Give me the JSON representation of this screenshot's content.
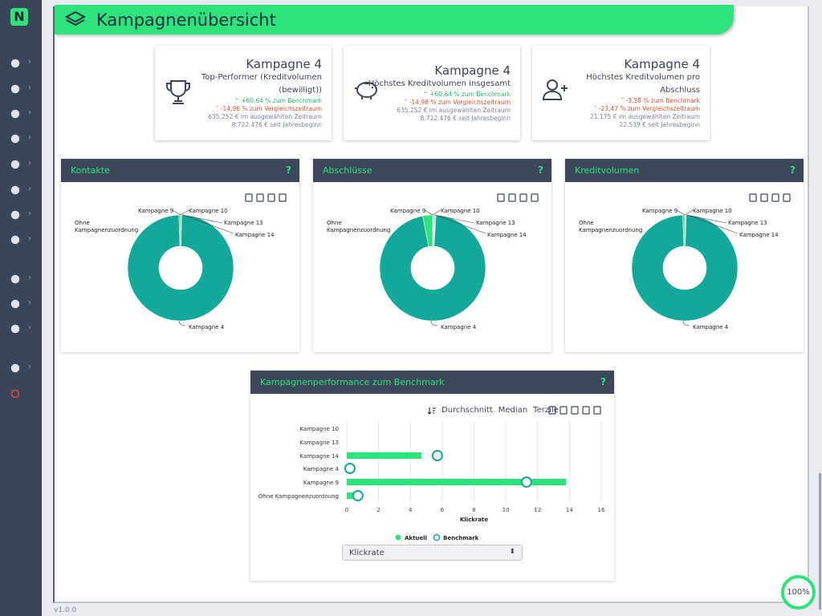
{
  "app": {
    "logo_letter": "N",
    "version": "v1.0.0",
    "zoom": "100%",
    "accent": "#2ee37b",
    "sidebar_bg": "#3b4559"
  },
  "sidebar": {
    "items": [
      {
        "icon": "filter-icon"
      },
      {
        "icon": "check-icon"
      },
      {
        "icon": "calculator-icon"
      },
      {
        "icon": "hand-coins-icon"
      },
      {
        "icon": "lightbulb-icon"
      },
      {
        "icon": "target-icon"
      },
      {
        "icon": "id-card-icon"
      },
      {
        "icon": "eye-icon"
      },
      {
        "icon": "tools-icon"
      },
      {
        "icon": "lock-icon"
      },
      {
        "icon": "play-icon"
      },
      {
        "icon": "user-icon"
      },
      {
        "icon": "power-icon"
      }
    ]
  },
  "page": {
    "title": "Kampagnenübersicht"
  },
  "kpis": [
    {
      "icon": "trophy-icon",
      "name": "Kampagne 4",
      "desc1": "Top-Performer (Kreditvolumen",
      "desc2": "(bewilligt))",
      "up": "^ +60,64 % zum Benchmark",
      "down": "˅ -14,96 % zum Vergleichszeitraum",
      "period": "635.252 € im ausgewählten Zeitraum",
      "ytd": "8.722.476 € seit Jahresbeginn"
    },
    {
      "icon": "piggy-bank-icon",
      "name": "Kampagne 4",
      "desc1": "Höchstes Kreditvolumen insgesamt",
      "desc2": "",
      "up": "^ +60,64 % zum Benchmark",
      "down": "˅ -14,96 % zum Vergleichszeitraum",
      "period": "635.252 € im ausgewählten Zeitraum",
      "ytd": "8.722.476 € seit Jahresbeginn"
    },
    {
      "icon": "user-plus-icon",
      "name": "Kampagne 4",
      "desc1": "Höchstes Kreditvolumen pro",
      "desc2": "Abschluss",
      "up": "",
      "down1": "˅ -3,58 % zum Benchmark",
      "down": "˅ -23,47 % zum Vergleichszeitraum",
      "period": "21.175 € im ausgewählten Zeitraum",
      "ytd": "22.539 € seit Jahresbeginn"
    }
  ],
  "donuts": [
    {
      "title": "Kontakte",
      "help": "?"
    },
    {
      "title": "Abschlüsse",
      "help": "?"
    },
    {
      "title": "Kreditvolumen",
      "help": "?"
    }
  ],
  "donut_labels": {
    "k9": "Kampagne 9",
    "k10": "Kampagne 10",
    "k13": "Kampagne 13",
    "k14": "Kampagne 14",
    "ohne1": "Ohne",
    "ohne2": "Kampagnenzuordnung",
    "k4": "Kampagne 4"
  },
  "benchmark": {
    "title": "Kampagnenperformance zum Benchmark",
    "help": "?",
    "opt_avg": "Durchschnitt",
    "opt_median": "Median",
    "opt_terzile": "Terzile",
    "select_value": "Klickrate",
    "legend_actual": "Aktuell",
    "legend_bench": "Benchmark"
  },
  "chart_data": [
    {
      "type": "pie",
      "title": "Kontakte",
      "labels": [
        "Kampagne 4",
        "Ohne Kampagnenzuordnung",
        "Kampagne 9",
        "Kampagne 10",
        "Kampagne 13",
        "Kampagne 14"
      ],
      "values": [
        99.2,
        0.5,
        0.1,
        0.1,
        0.05,
        0.05
      ]
    },
    {
      "type": "pie",
      "title": "Abschlüsse",
      "labels": [
        "Kampagne 4",
        "Ohne Kampagnenzuordnung",
        "Kampagne 9",
        "Kampagne 10",
        "Kampagne 13",
        "Kampagne 14"
      ],
      "values": [
        96.0,
        3.0,
        0.25,
        0.25,
        0.25,
        0.25
      ]
    },
    {
      "type": "pie",
      "title": "Kreditvolumen",
      "labels": [
        "Kampagne 4",
        "Ohne Kampagnenzuordnung",
        "Kampagne 9",
        "Kampagne 10",
        "Kampagne 13",
        "Kampagne 14"
      ],
      "values": [
        99.0,
        0.6,
        0.1,
        0.1,
        0.1,
        0.1
      ]
    },
    {
      "type": "bar",
      "title": "Kampagnenperformance zum Benchmark",
      "categories": [
        "Kampagne 10",
        "Kampagne 13",
        "Kampagne 14",
        "Kampagne 4",
        "Kampagne 9",
        "Ohne Kampagnenzuordnung"
      ],
      "series": [
        {
          "name": "Aktuell",
          "values": [
            0,
            0,
            4.7,
            0,
            13.8,
            0.5
          ]
        },
        {
          "name": "Benchmark",
          "values": [
            null,
            null,
            5.7,
            0.2,
            11.3,
            0.7
          ]
        }
      ],
      "xlabel": "Klickrate",
      "xlim": [
        0,
        16
      ],
      "xticks": [
        0,
        2,
        4,
        6,
        8,
        10,
        12,
        14,
        16
      ]
    }
  ]
}
